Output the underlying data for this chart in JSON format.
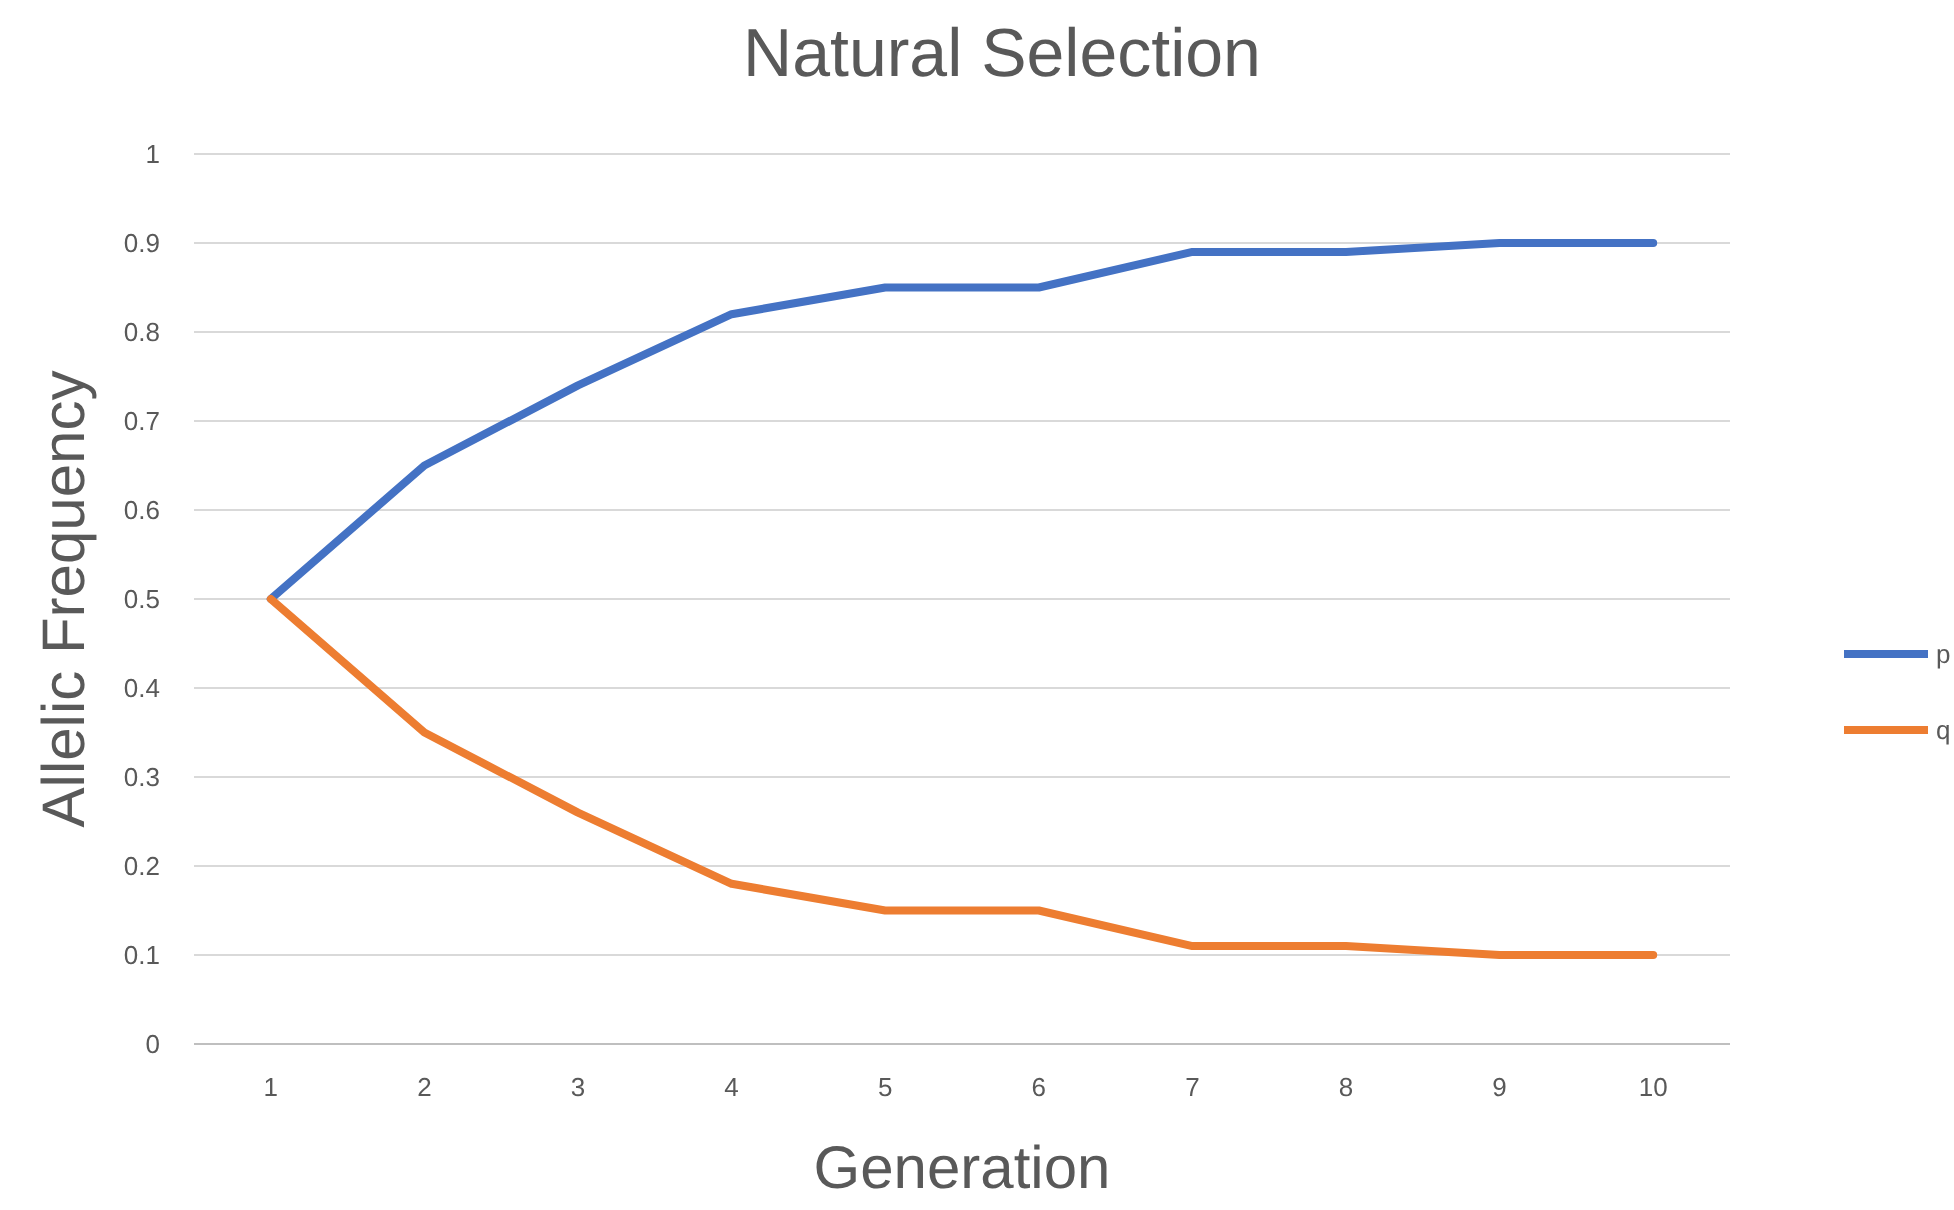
{
  "chart_data": {
    "type": "line",
    "title": "Natural Selection",
    "xlabel": "Generation",
    "ylabel": "Allelic Frequency",
    "categories": [
      "1",
      "2",
      "3",
      "4",
      "5",
      "6",
      "7",
      "8",
      "9",
      "10"
    ],
    "series": [
      {
        "name": "p",
        "color": "#4472c4",
        "values": [
          0.5,
          0.65,
          0.74,
          0.82,
          0.85,
          0.85,
          0.89,
          0.89,
          0.9,
          0.9
        ]
      },
      {
        "name": "q",
        "color": "#ed7d31",
        "values": [
          0.5,
          0.35,
          0.26,
          0.18,
          0.15,
          0.15,
          0.11,
          0.11,
          0.1,
          0.1
        ]
      }
    ],
    "ylim": [
      0,
      1
    ],
    "yticks": [
      0,
      0.1,
      0.2,
      0.3,
      0.4,
      0.5,
      0.6,
      0.7,
      0.8,
      0.9,
      1
    ],
    "grid": "y",
    "legend": "right",
    "marker": "none",
    "line_style": "solid"
  }
}
